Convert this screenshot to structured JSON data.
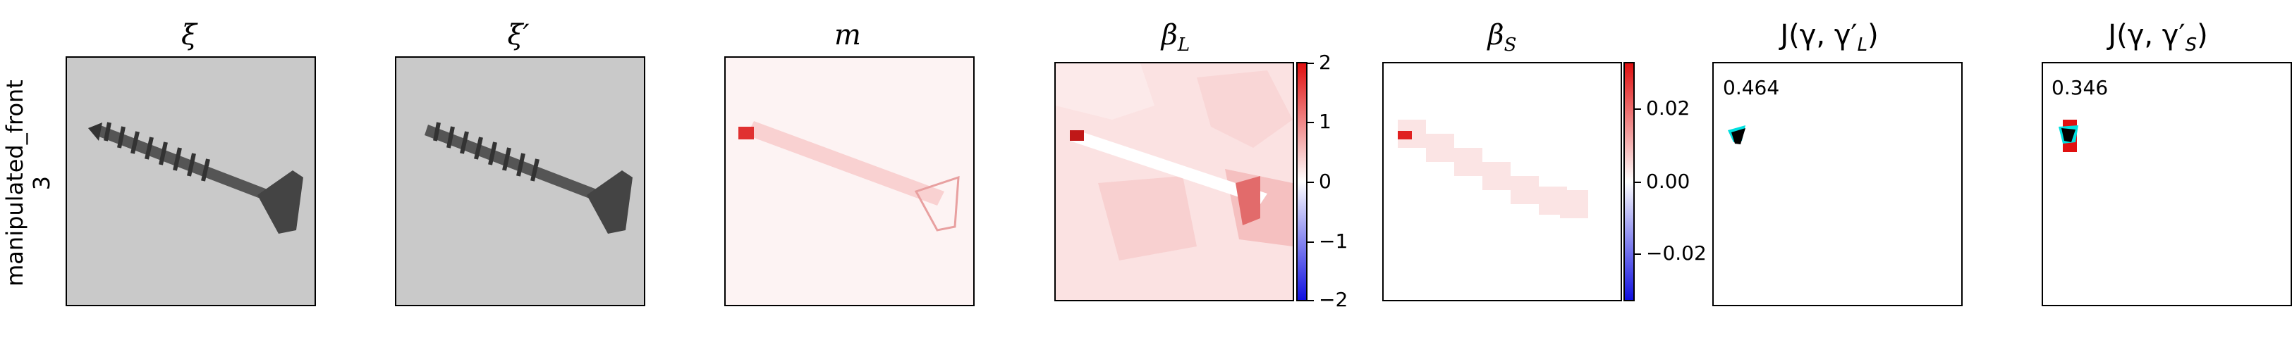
{
  "row_label_line1": "manipulated_front",
  "row_label_line2": "3",
  "titles": {
    "xi": "ξ",
    "xi_prime": "ξ′",
    "m": "m",
    "beta_L": "β",
    "beta_L_sub": "L",
    "beta_S": "β",
    "beta_S_sub": "S",
    "J_L": "J(γ, γ′",
    "J_L_sub": "L",
    "J_S": "J(γ, γ′",
    "J_S_sub": "S",
    "close_paren": ")"
  },
  "colorbar_L": {
    "ticks": [
      "2",
      "1",
      "0",
      "−1",
      "−2"
    ]
  },
  "colorbar_S": {
    "ticks": [
      "0.02",
      "0.00",
      "−0.02"
    ]
  },
  "jaccard_L_value": "0.464",
  "jaccard_S_value": "0.346",
  "colors": {
    "negative": "#1010e0",
    "positive": "#e01010",
    "neutral": "#ffffff"
  }
}
